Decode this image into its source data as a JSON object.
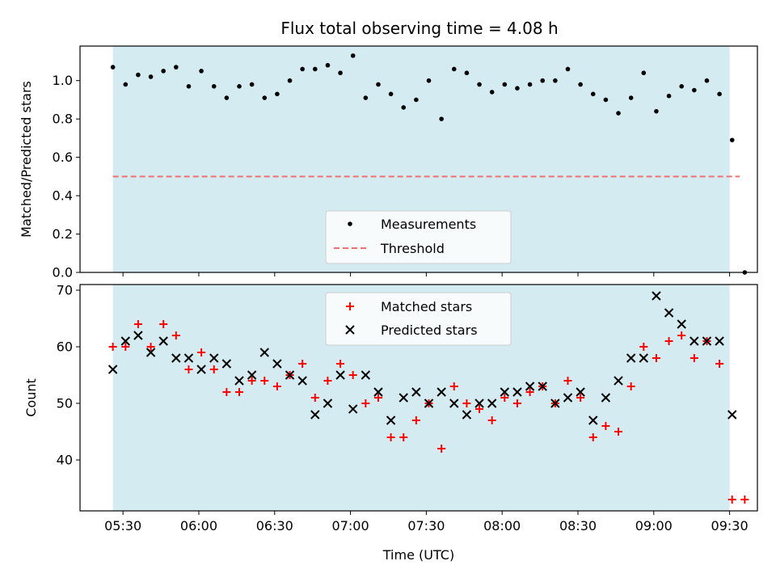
{
  "chart_data": [
    {
      "type": "scatter",
      "title": "Flux total observing time = 4.08 h",
      "xlabel": "",
      "ylabel": "Matched/Predicted stars",
      "ylim": [
        0,
        1.18
      ],
      "yticks": [
        0.0,
        0.2,
        0.4,
        0.6,
        0.8,
        1.0
      ],
      "ytick_labels": [
        "0.0",
        "0.2",
        "0.4",
        "0.6",
        "0.8",
        "1.0"
      ],
      "observing_window": [
        "05:26",
        "09:30"
      ],
      "legend": {
        "placement": "lower-center",
        "entries": [
          {
            "label": "Measurements",
            "series": "Measurements"
          },
          {
            "label": "Threshold",
            "series": "Threshold"
          }
        ]
      },
      "threshold": {
        "name": "Threshold",
        "value": 0.5,
        "x_range": [
          "05:26",
          "09:34"
        ],
        "color": "#f07070"
      },
      "series": [
        {
          "name": "Measurements",
          "color": "#000000",
          "points": [
            [
              "05:26",
              1.07
            ],
            [
              "05:31",
              0.98
            ],
            [
              "05:36",
              1.03
            ],
            [
              "05:41",
              1.02
            ],
            [
              "05:46",
              1.05
            ],
            [
              "05:51",
              1.07
            ],
            [
              "05:56",
              0.97
            ],
            [
              "06:01",
              1.05
            ],
            [
              "06:06",
              0.97
            ],
            [
              "06:11",
              0.91
            ],
            [
              "06:16",
              0.97
            ],
            [
              "06:21",
              0.98
            ],
            [
              "06:26",
              0.91
            ],
            [
              "06:31",
              0.93
            ],
            [
              "06:36",
              1.0
            ],
            [
              "06:41",
              1.06
            ],
            [
              "06:46",
              1.06
            ],
            [
              "06:51",
              1.08
            ],
            [
              "06:56",
              1.04
            ],
            [
              "07:01",
              1.13
            ],
            [
              "07:06",
              0.91
            ],
            [
              "07:11",
              0.98
            ],
            [
              "07:16",
              0.93
            ],
            [
              "07:21",
              0.86
            ],
            [
              "07:26",
              0.9
            ],
            [
              "07:31",
              1.0
            ],
            [
              "07:36",
              0.8
            ],
            [
              "07:41",
              1.06
            ],
            [
              "07:46",
              1.04
            ],
            [
              "07:51",
              0.98
            ],
            [
              "07:56",
              0.94
            ],
            [
              "08:01",
              0.98
            ],
            [
              "08:06",
              0.96
            ],
            [
              "08:11",
              0.98
            ],
            [
              "08:16",
              1.0
            ],
            [
              "08:21",
              1.0
            ],
            [
              "08:26",
              1.06
            ],
            [
              "08:31",
              0.98
            ],
            [
              "08:36",
              0.93
            ],
            [
              "08:41",
              0.9
            ],
            [
              "08:46",
              0.83
            ],
            [
              "08:51",
              0.91
            ],
            [
              "08:56",
              1.04
            ],
            [
              "09:01",
              0.84
            ],
            [
              "09:06",
              0.92
            ],
            [
              "09:11",
              0.97
            ],
            [
              "09:16",
              0.95
            ],
            [
              "09:21",
              1.0
            ],
            [
              "09:26",
              0.93
            ],
            [
              "09:31",
              0.69
            ],
            [
              "09:36",
              0.0
            ]
          ]
        }
      ]
    },
    {
      "type": "scatter",
      "title": "",
      "xlabel": "Time (UTC)",
      "ylabel": "Count",
      "xlim": [
        "05:13",
        "09:41"
      ],
      "ylim": [
        31,
        71
      ],
      "yticks": [
        40,
        50,
        60,
        70
      ],
      "ytick_labels": [
        "40",
        "50",
        "60",
        "70"
      ],
      "xticks": [
        "05:30",
        "06:00",
        "06:30",
        "07:00",
        "07:30",
        "08:00",
        "08:30",
        "09:00",
        "09:30"
      ],
      "xtick_labels": [
        "05:30",
        "06:00",
        "06:30",
        "07:00",
        "07:30",
        "08:00",
        "08:30",
        "09:00",
        "09:30"
      ],
      "observing_window": [
        "05:26",
        "09:30"
      ],
      "legend": {
        "placement": "top-center",
        "entries": [
          {
            "label": "Matched stars",
            "series": "Matched stars"
          },
          {
            "label": "Predicted stars",
            "series": "Predicted stars"
          }
        ]
      },
      "series": [
        {
          "name": "Matched stars",
          "marker": "plus",
          "color": "#ff0000",
          "points": [
            [
              "05:26",
              60
            ],
            [
              "05:31",
              60
            ],
            [
              "05:36",
              64
            ],
            [
              "05:41",
              60
            ],
            [
              "05:46",
              64
            ],
            [
              "05:51",
              62
            ],
            [
              "05:56",
              56
            ],
            [
              "06:01",
              59
            ],
            [
              "06:06",
              56
            ],
            [
              "06:11",
              52
            ],
            [
              "06:16",
              52
            ],
            [
              "06:21",
              54
            ],
            [
              "06:26",
              54
            ],
            [
              "06:31",
              53
            ],
            [
              "06:36",
              55
            ],
            [
              "06:41",
              57
            ],
            [
              "06:46",
              51
            ],
            [
              "06:51",
              54
            ],
            [
              "06:56",
              57
            ],
            [
              "07:01",
              55
            ],
            [
              "07:06",
              50
            ],
            [
              "07:11",
              51
            ],
            [
              "07:16",
              44
            ],
            [
              "07:21",
              44
            ],
            [
              "07:26",
              47
            ],
            [
              "07:31",
              50
            ],
            [
              "07:36",
              42
            ],
            [
              "07:41",
              53
            ],
            [
              "07:46",
              50
            ],
            [
              "07:51",
              49
            ],
            [
              "07:56",
              47
            ],
            [
              "08:01",
              51
            ],
            [
              "08:06",
              50
            ],
            [
              "08:11",
              52
            ],
            [
              "08:16",
              53
            ],
            [
              "08:21",
              50
            ],
            [
              "08:26",
              54
            ],
            [
              "08:31",
              51
            ],
            [
              "08:36",
              44
            ],
            [
              "08:41",
              46
            ],
            [
              "08:46",
              45
            ],
            [
              "08:51",
              53
            ],
            [
              "08:56",
              60
            ],
            [
              "09:01",
              58
            ],
            [
              "09:06",
              61
            ],
            [
              "09:11",
              62
            ],
            [
              "09:16",
              58
            ],
            [
              "09:21",
              61
            ],
            [
              "09:26",
              57
            ],
            [
              "09:31",
              33
            ],
            [
              "09:36",
              33
            ]
          ]
        },
        {
          "name": "Predicted stars",
          "marker": "x",
          "color": "#000000",
          "points": [
            [
              "05:26",
              56
            ],
            [
              "05:31",
              61
            ],
            [
              "05:36",
              62
            ],
            [
              "05:41",
              59
            ],
            [
              "05:46",
              61
            ],
            [
              "05:51",
              58
            ],
            [
              "05:56",
              58
            ],
            [
              "06:01",
              56
            ],
            [
              "06:06",
              58
            ],
            [
              "06:11",
              57
            ],
            [
              "06:16",
              54
            ],
            [
              "06:21",
              55
            ],
            [
              "06:26",
              59
            ],
            [
              "06:31",
              57
            ],
            [
              "06:36",
              55
            ],
            [
              "06:41",
              54
            ],
            [
              "06:46",
              48
            ],
            [
              "06:51",
              50
            ],
            [
              "06:56",
              55
            ],
            [
              "07:01",
              49
            ],
            [
              "07:06",
              55
            ],
            [
              "07:11",
              52
            ],
            [
              "07:16",
              47
            ],
            [
              "07:21",
              51
            ],
            [
              "07:26",
              52
            ],
            [
              "07:31",
              50
            ],
            [
              "07:36",
              52
            ],
            [
              "07:41",
              50
            ],
            [
              "07:46",
              48
            ],
            [
              "07:51",
              50
            ],
            [
              "07:56",
              50
            ],
            [
              "08:01",
              52
            ],
            [
              "08:06",
              52
            ],
            [
              "08:11",
              53
            ],
            [
              "08:16",
              53
            ],
            [
              "08:21",
              50
            ],
            [
              "08:26",
              51
            ],
            [
              "08:31",
              52
            ],
            [
              "08:36",
              47
            ],
            [
              "08:41",
              51
            ],
            [
              "08:46",
              54
            ],
            [
              "08:51",
              58
            ],
            [
              "08:56",
              58
            ],
            [
              "09:01",
              69
            ],
            [
              "09:06",
              66
            ],
            [
              "09:11",
              64
            ],
            [
              "09:16",
              61
            ],
            [
              "09:21",
              61
            ],
            [
              "09:26",
              61
            ],
            [
              "09:31",
              48
            ]
          ]
        }
      ]
    }
  ],
  "colors": {
    "observing_window": "#d4ebf1",
    "threshold": "#f07070",
    "matched": "#ff0000",
    "predicted": "#000000"
  }
}
